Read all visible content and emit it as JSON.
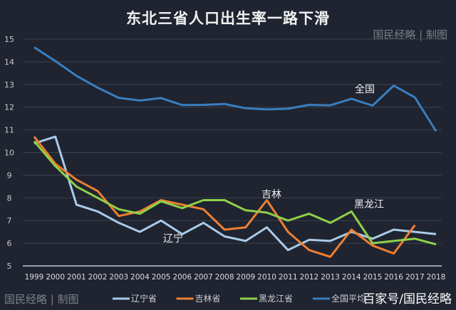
{
  "title": "东北三省人口出生率一路下滑",
  "credit": "国民经略 | 制图",
  "source": "百家号/国民经略",
  "chart_data": {
    "type": "line",
    "title": "东北三省人口出生率一路下滑",
    "x": [
      "1999",
      "2000",
      "2001",
      "2002",
      "2003",
      "2004",
      "2005",
      "2006",
      "2007",
      "2008",
      "2009",
      "2010",
      "2011",
      "2012",
      "2013",
      "2014",
      "2015",
      "2016",
      "2017",
      "2018"
    ],
    "ylim": [
      5,
      15
    ],
    "yticks": [
      "5",
      "6",
      "7",
      "8",
      "9",
      "10",
      "11",
      "12",
      "13",
      "14",
      "15"
    ],
    "grid": true,
    "legend_position": "bottom",
    "series": [
      {
        "name": "辽宁省",
        "color": "#a9cbe8",
        "label": "辽宁",
        "values": [
          10.4,
          10.7,
          7.7,
          7.4,
          6.9,
          6.5,
          7.0,
          6.4,
          6.9,
          6.3,
          6.1,
          6.7,
          5.7,
          6.15,
          6.1,
          6.5,
          6.2,
          6.6,
          6.5,
          6.4
        ]
      },
      {
        "name": "吉林省",
        "color": "#ef7f32",
        "label": "吉林",
        "values": [
          10.7,
          9.5,
          8.8,
          8.3,
          7.2,
          7.4,
          7.9,
          7.7,
          7.5,
          6.6,
          6.7,
          7.9,
          6.5,
          5.7,
          5.4,
          6.6,
          5.9,
          5.55,
          6.8,
          null
        ]
      },
      {
        "name": "黑龙江省",
        "color": "#8fd14a",
        "label": "黑龙江",
        "values": [
          10.5,
          9.4,
          8.5,
          8.0,
          7.5,
          7.3,
          7.85,
          7.55,
          7.9,
          7.9,
          7.45,
          7.35,
          7.0,
          7.3,
          6.9,
          7.4,
          6.0,
          6.1,
          6.2,
          5.95
        ]
      },
      {
        "name": "全国平均",
        "color": "#3a7ebf",
        "label": "全国",
        "values": [
          14.64,
          14.03,
          13.38,
          12.86,
          12.41,
          12.29,
          12.4,
          12.09,
          12.1,
          12.14,
          11.95,
          11.9,
          11.93,
          12.1,
          12.08,
          12.37,
          12.07,
          12.95,
          12.43,
          10.94
        ]
      }
    ]
  }
}
